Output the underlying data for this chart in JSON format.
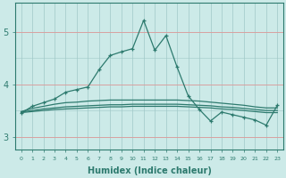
{
  "xlabel": "Humidex (Indice chaleur)",
  "x": [
    0,
    1,
    2,
    3,
    4,
    5,
    6,
    7,
    8,
    9,
    10,
    11,
    12,
    13,
    14,
    15,
    16,
    17,
    18,
    19,
    20,
    21,
    22,
    23
  ],
  "line1": [
    3.45,
    3.58,
    3.65,
    3.72,
    3.85,
    3.9,
    3.95,
    4.28,
    4.55,
    4.62,
    4.68,
    5.22,
    4.65,
    4.93,
    4.33,
    3.78,
    3.52,
    3.3,
    3.47,
    3.42,
    3.37,
    3.32,
    3.22,
    3.6
  ],
  "line2": [
    3.48,
    3.54,
    3.58,
    3.62,
    3.65,
    3.66,
    3.68,
    3.69,
    3.7,
    3.7,
    3.7,
    3.7,
    3.7,
    3.7,
    3.7,
    3.69,
    3.68,
    3.66,
    3.64,
    3.62,
    3.6,
    3.57,
    3.55,
    3.55
  ],
  "line3": [
    3.47,
    3.5,
    3.53,
    3.55,
    3.57,
    3.58,
    3.59,
    3.6,
    3.61,
    3.61,
    3.62,
    3.62,
    3.62,
    3.62,
    3.62,
    3.61,
    3.6,
    3.59,
    3.57,
    3.56,
    3.54,
    3.52,
    3.5,
    3.5
  ],
  "line4": [
    3.46,
    3.48,
    3.5,
    3.52,
    3.53,
    3.54,
    3.55,
    3.56,
    3.57,
    3.57,
    3.58,
    3.58,
    3.58,
    3.58,
    3.58,
    3.57,
    3.56,
    3.55,
    3.53,
    3.52,
    3.5,
    3.48,
    3.46,
    3.46
  ],
  "line_color": "#2d7a6e",
  "bg_color": "#cceae8",
  "grid_color_h": "#d8a0a0",
  "grid_color_v": "#a0c8c8",
  "ylim": [
    2.75,
    5.55
  ],
  "yticks": [
    3,
    4,
    5
  ],
  "marker": "+"
}
